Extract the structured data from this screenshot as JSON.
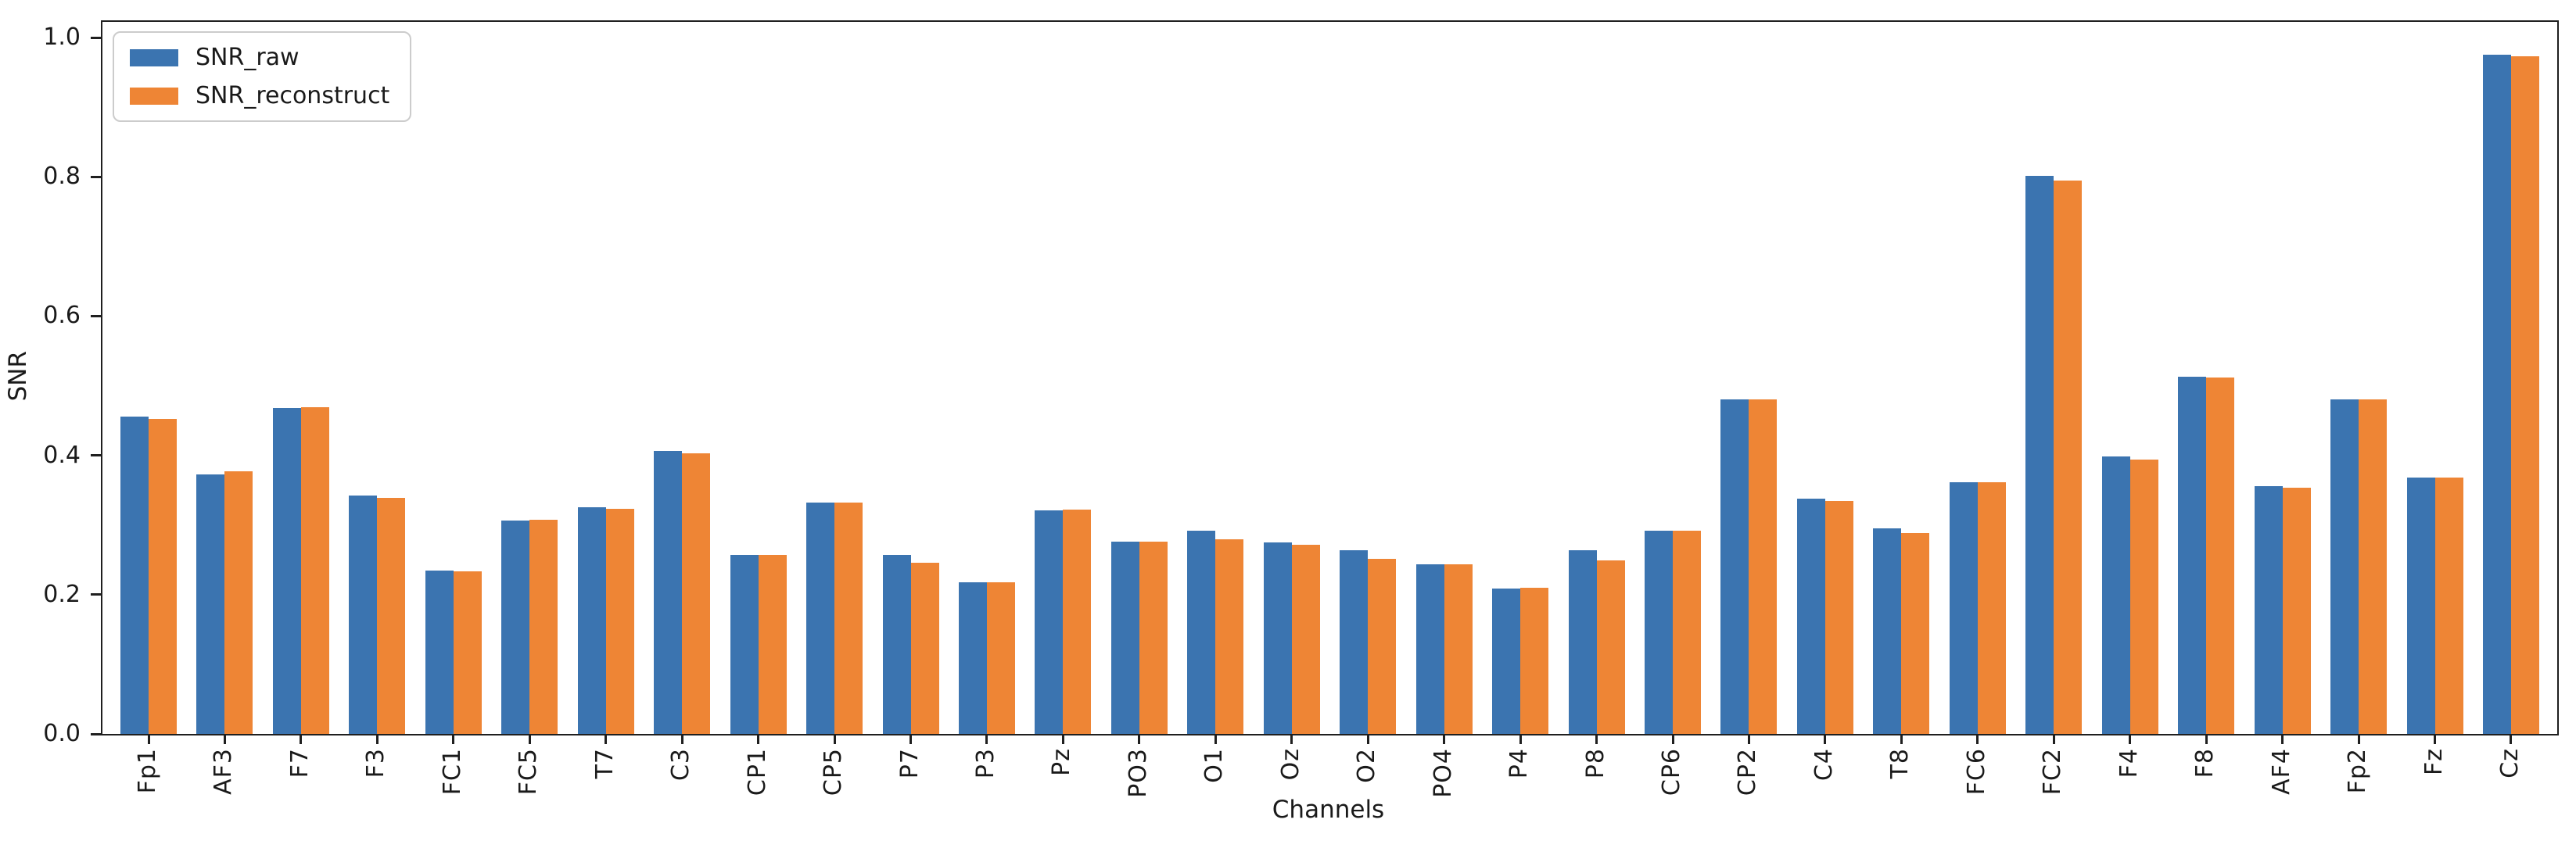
{
  "figure": {
    "background": "#ffffff",
    "text_color": "#1a1a1a",
    "spine_color": "#1f1f1f"
  },
  "chart_data": {
    "type": "bar",
    "title": "",
    "xlabel": "Channels",
    "ylabel": "SNR",
    "ylim": [
      0,
      1.0
    ],
    "yticks": [
      0.0,
      0.2,
      0.4,
      0.6,
      0.8,
      1.0
    ],
    "grid": false,
    "legend_position": "upper left",
    "categories": [
      "Fp1",
      "AF3",
      "F7",
      "F3",
      "FC1",
      "FC5",
      "T7",
      "C3",
      "CP1",
      "CP5",
      "P7",
      "P3",
      "Pz",
      "PO3",
      "O1",
      "Oz",
      "O2",
      "PO4",
      "P4",
      "P8",
      "CP6",
      "CP2",
      "C4",
      "T8",
      "FC6",
      "FC2",
      "F4",
      "F8",
      "AF4",
      "Fp2",
      "Fz",
      "Cz"
    ],
    "series": [
      {
        "name": "SNR_raw",
        "color": "#3b74b0",
        "values": [
          0.456,
          0.373,
          0.468,
          0.342,
          0.235,
          0.306,
          0.326,
          0.406,
          0.257,
          0.332,
          0.257,
          0.218,
          0.321,
          0.276,
          0.292,
          0.275,
          0.264,
          0.244,
          0.209,
          0.264,
          0.292,
          0.48,
          0.338,
          0.295,
          0.361,
          0.801,
          0.398,
          0.513,
          0.356,
          0.48,
          0.368,
          0.975
        ]
      },
      {
        "name": "SNR_reconstruct",
        "color": "#ee8535",
        "values": [
          0.452,
          0.377,
          0.469,
          0.339,
          0.234,
          0.308,
          0.323,
          0.403,
          0.257,
          0.332,
          0.246,
          0.218,
          0.322,
          0.276,
          0.279,
          0.272,
          0.251,
          0.244,
          0.21,
          0.249,
          0.292,
          0.48,
          0.335,
          0.288,
          0.361,
          0.795,
          0.394,
          0.512,
          0.353,
          0.48,
          0.368,
          0.973
        ]
      }
    ]
  }
}
